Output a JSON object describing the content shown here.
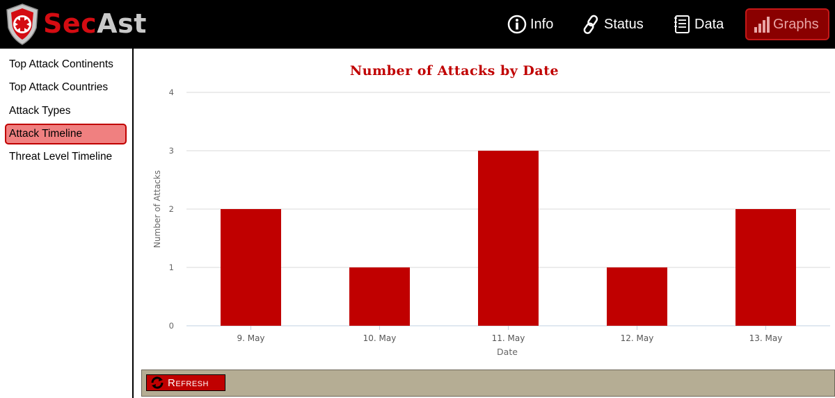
{
  "app": {
    "brand_part1": "Sec",
    "brand_part2": "Ast"
  },
  "nav": [
    {
      "label": "Info",
      "icon": "info-icon"
    },
    {
      "label": "Status",
      "icon": "link-icon"
    },
    {
      "label": "Data",
      "icon": "document-icon"
    },
    {
      "label": "Graphs",
      "icon": "bar-chart-icon",
      "active": true
    }
  ],
  "sidebar": {
    "items": [
      {
        "label": "Top Attack Continents"
      },
      {
        "label": "Top Attack Countries"
      },
      {
        "label": "Attack Types"
      },
      {
        "label": "Attack Timeline",
        "active": true
      },
      {
        "label": "Threat Level Timeline"
      }
    ]
  },
  "chart_data": {
    "type": "bar",
    "title": "Number of Attacks by Date",
    "xlabel": "Date",
    "ylabel": "Number of Attacks",
    "categories": [
      "9. May",
      "10. May",
      "11. May",
      "12. May",
      "13. May"
    ],
    "values": [
      2,
      1,
      3,
      1,
      2
    ],
    "ylim": [
      0,
      4
    ],
    "yticks": [
      "0",
      "1",
      "2",
      "3",
      "4"
    ],
    "grid": true,
    "legend": "none",
    "bar_color": "#c00000",
    "title_color": "#c00000"
  },
  "footer": {
    "refresh_label": "Refresh"
  },
  "colors": {
    "accent": "#c00000",
    "footer_bg": "#b5ad94",
    "topbar_bg": "#000000"
  }
}
